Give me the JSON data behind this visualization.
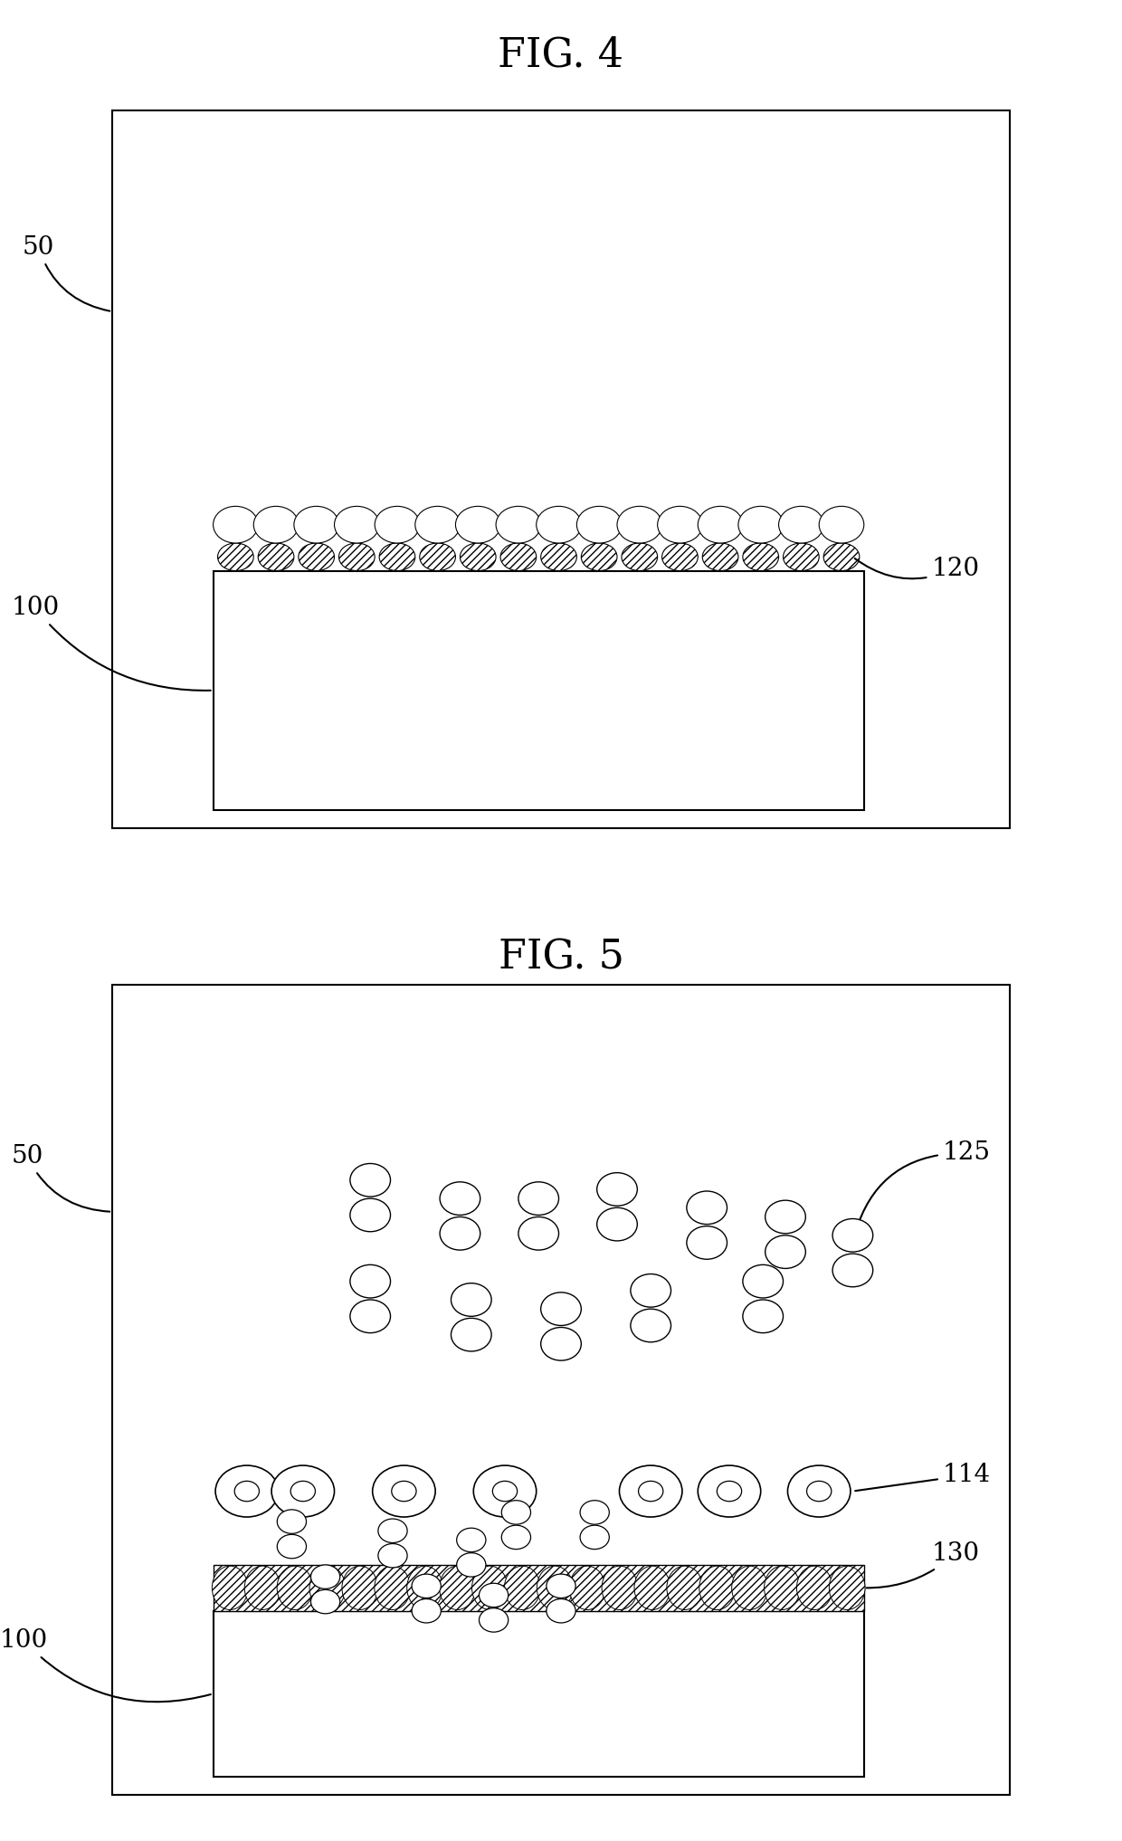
{
  "bg_color": "#ffffff",
  "line_color": "#000000",
  "fig4_title": "FIG. 4",
  "fig5_title": "FIG. 5",
  "label_50": "50",
  "label_100": "100",
  "label_120": "120",
  "label_114": "114",
  "label_125": "125",
  "label_130": "130"
}
